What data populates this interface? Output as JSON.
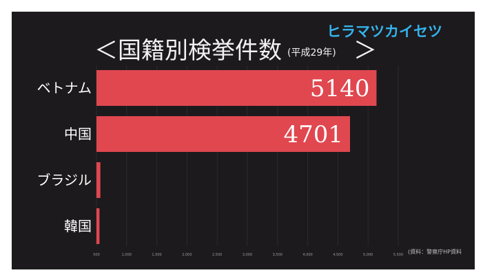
{
  "chart_data": {
    "type": "bar",
    "orientation": "horizontal",
    "title": "＜国籍別検挙件数",
    "title_suffix": "(平成29年)",
    "title_close": "＞",
    "watermark": "ヒラマツカイセツ",
    "source": "(資料：警察庁HP資料",
    "categories": [
      "ベトナム",
      "中国",
      "ブラジル",
      "韓国"
    ],
    "values": [
      5140,
      4701,
      565,
      550
    ],
    "value_labels": [
      "5140",
      "4701",
      "",
      ""
    ],
    "xlim": [
      500,
      5500
    ],
    "x_ticks": [
      "500",
      "1,000",
      "1,500",
      "2,000",
      "2,500",
      "3,000",
      "3,500",
      "4,000",
      "4,500",
      "5,000",
      "5,500"
    ],
    "grid": true,
    "bar_color": "#e0474f",
    "background_color": "#1c1a1d"
  }
}
